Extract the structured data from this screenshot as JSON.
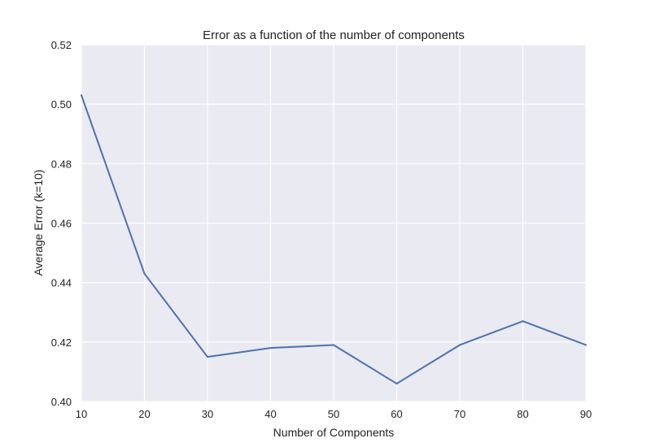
{
  "chart_data": {
    "type": "line",
    "title": "Error as a function of the number of components",
    "xlabel": "Number of Components",
    "ylabel": "Average Error (k=10)",
    "xlim": [
      10,
      90
    ],
    "ylim": [
      0.4,
      0.52
    ],
    "xticks": [
      "10",
      "20",
      "30",
      "40",
      "50",
      "60",
      "70",
      "80",
      "90"
    ],
    "yticks": [
      "0.40",
      "0.42",
      "0.44",
      "0.46",
      "0.48",
      "0.50",
      "0.52"
    ],
    "grid": true,
    "colors": {
      "background": "#eaeaf2",
      "grid": "#ffffff",
      "line": "#4c72b0"
    },
    "series": [
      {
        "x": [
          10,
          20,
          30,
          40,
          50,
          60,
          70,
          80,
          90
        ],
        "values": [
          0.503,
          0.443,
          0.415,
          0.418,
          0.419,
          0.406,
          0.419,
          0.427,
          0.419
        ]
      }
    ]
  }
}
